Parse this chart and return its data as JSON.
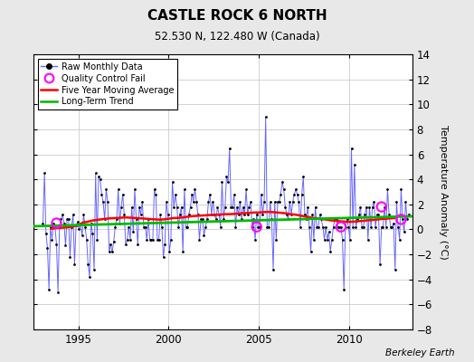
{
  "title": "CASTLE ROCK 6 NORTH",
  "subtitle": "52.530 N, 122.480 W (Canada)",
  "ylabel": "Temperature Anomaly (°C)",
  "attribution": "Berkeley Earth",
  "xlim": [
    1992.5,
    2013.5
  ],
  "ylim": [
    -8,
    14
  ],
  "yticks": [
    -8,
    -6,
    -4,
    -2,
    0,
    2,
    4,
    6,
    8,
    10,
    12,
    14
  ],
  "xticks": [
    1995,
    2000,
    2005,
    2010
  ],
  "bg_color": "#e8e8e8",
  "plot_bg_color": "#ffffff",
  "grid_color": "#cccccc",
  "raw_color": "#6666ff",
  "raw_dot_color": "#000000",
  "ma_color": "#ff0000",
  "trend_color": "#00bb00",
  "qc_color": "#ff00ff",
  "raw_data_times": [
    1993.042,
    1993.125,
    1993.208,
    1993.292,
    1993.375,
    1993.458,
    1993.542,
    1993.625,
    1993.708,
    1993.792,
    1993.875,
    1993.958,
    1994.042,
    1994.125,
    1994.208,
    1994.292,
    1994.375,
    1994.458,
    1994.542,
    1994.625,
    1994.708,
    1994.792,
    1994.875,
    1994.958,
    1995.042,
    1995.125,
    1995.208,
    1995.292,
    1995.375,
    1995.458,
    1995.542,
    1995.625,
    1995.708,
    1995.792,
    1995.875,
    1995.958,
    1996.042,
    1996.125,
    1996.208,
    1996.292,
    1996.375,
    1996.458,
    1996.542,
    1996.625,
    1996.708,
    1996.792,
    1996.875,
    1996.958,
    1997.042,
    1997.125,
    1997.208,
    1997.292,
    1997.375,
    1997.458,
    1997.542,
    1997.625,
    1997.708,
    1997.792,
    1997.875,
    1997.958,
    1998.042,
    1998.125,
    1998.208,
    1998.292,
    1998.375,
    1998.458,
    1998.542,
    1998.625,
    1998.708,
    1998.792,
    1998.875,
    1998.958,
    1999.042,
    1999.125,
    1999.208,
    1999.292,
    1999.375,
    1999.458,
    1999.542,
    1999.625,
    1999.708,
    1999.792,
    1999.875,
    1999.958,
    2000.042,
    2000.125,
    2000.208,
    2000.292,
    2000.375,
    2000.458,
    2000.542,
    2000.625,
    2000.708,
    2000.792,
    2000.875,
    2000.958,
    2001.042,
    2001.125,
    2001.208,
    2001.292,
    2001.375,
    2001.458,
    2001.542,
    2001.625,
    2001.708,
    2001.792,
    2001.875,
    2001.958,
    2002.042,
    2002.125,
    2002.208,
    2002.292,
    2002.375,
    2002.458,
    2002.542,
    2002.625,
    2002.708,
    2002.792,
    2002.875,
    2002.958,
    2003.042,
    2003.125,
    2003.208,
    2003.292,
    2003.375,
    2003.458,
    2003.542,
    2003.625,
    2003.708,
    2003.792,
    2003.875,
    2003.958,
    2004.042,
    2004.125,
    2004.208,
    2004.292,
    2004.375,
    2004.458,
    2004.542,
    2004.625,
    2004.708,
    2004.792,
    2004.875,
    2004.958,
    2005.042,
    2005.125,
    2005.208,
    2005.292,
    2005.375,
    2005.458,
    2005.542,
    2005.625,
    2005.708,
    2005.792,
    2005.875,
    2005.958,
    2006.042,
    2006.125,
    2006.208,
    2006.292,
    2006.375,
    2006.458,
    2006.542,
    2006.625,
    2006.708,
    2006.792,
    2006.875,
    2006.958,
    2007.042,
    2007.125,
    2007.208,
    2007.292,
    2007.375,
    2007.458,
    2007.542,
    2007.625,
    2007.708,
    2007.792,
    2007.875,
    2007.958,
    2008.042,
    2008.125,
    2008.208,
    2008.292,
    2008.375,
    2008.458,
    2008.542,
    2008.625,
    2008.708,
    2008.792,
    2008.875,
    2008.958,
    2009.042,
    2009.125,
    2009.208,
    2009.292,
    2009.375,
    2009.458,
    2009.542,
    2009.625,
    2009.708,
    2009.792,
    2009.875,
    2009.958,
    2010.042,
    2010.125,
    2010.208,
    2010.292,
    2010.375,
    2010.458,
    2010.542,
    2010.625,
    2010.708,
    2010.792,
    2010.875,
    2010.958,
    2011.042,
    2011.125,
    2011.208,
    2011.292,
    2011.375,
    2011.458,
    2011.542,
    2011.625,
    2011.708,
    2011.792,
    2011.875,
    2011.958,
    2012.042,
    2012.125,
    2012.208,
    2012.292,
    2012.375,
    2012.458,
    2012.542,
    2012.625,
    2012.708,
    2012.792,
    2012.875,
    2012.958,
    2013.042,
    2013.125,
    2013.208,
    2013.292
  ],
  "raw_data_values": [
    0.5,
    4.5,
    -0.3,
    -1.5,
    -4.8,
    0.2,
    -0.8,
    0.5,
    0.2,
    -1.2,
    -5.0,
    0.3,
    0.8,
    1.2,
    0.5,
    -1.3,
    0.8,
    0.8,
    -2.2,
    0.2,
    1.2,
    -2.8,
    0.3,
    0.6,
    0.0,
    0.5,
    -0.5,
    1.2,
    0.2,
    -0.8,
    -2.8,
    -3.8,
    0.5,
    -0.3,
    -3.2,
    4.5,
    -0.8,
    4.2,
    4.0,
    2.8,
    2.2,
    0.8,
    3.2,
    2.2,
    -1.8,
    -1.2,
    -1.8,
    -1.0,
    0.2,
    0.8,
    3.2,
    0.5,
    1.8,
    2.8,
    1.2,
    -1.2,
    -0.8,
    0.2,
    -0.8,
    1.8,
    -0.2,
    3.2,
    0.8,
    -1.2,
    1.8,
    1.2,
    2.2,
    0.2,
    0.2,
    -0.8,
    0.8,
    -0.8,
    -0.8,
    -0.8,
    3.2,
    2.8,
    -0.8,
    -0.8,
    1.2,
    0.2,
    -2.2,
    -1.2,
    2.2,
    1.2,
    -1.8,
    -0.8,
    3.8,
    1.8,
    2.8,
    1.8,
    0.2,
    1.2,
    1.8,
    -1.8,
    3.2,
    0.2,
    0.2,
    1.2,
    1.8,
    2.8,
    2.2,
    3.2,
    2.2,
    1.2,
    -0.8,
    0.8,
    0.8,
    -0.5,
    0.2,
    0.8,
    2.2,
    2.8,
    1.2,
    2.2,
    1.2,
    0.8,
    1.8,
    1.2,
    0.2,
    3.8,
    0.8,
    1.8,
    4.2,
    3.8,
    6.5,
    1.8,
    1.8,
    2.8,
    0.2,
    1.8,
    1.2,
    2.2,
    0.8,
    1.8,
    1.2,
    3.2,
    1.2,
    1.8,
    2.2,
    0.2,
    0.8,
    -0.8,
    1.2,
    0.2,
    0.2,
    2.8,
    1.2,
    2.2,
    9.0,
    0.2,
    0.2,
    2.2,
    0.8,
    -3.2,
    2.2,
    -0.8,
    2.2,
    2.2,
    2.8,
    3.8,
    3.2,
    1.8,
    1.2,
    0.8,
    2.2,
    1.2,
    2.2,
    2.8,
    3.2,
    2.8,
    2.2,
    0.2,
    2.8,
    4.2,
    1.2,
    0.8,
    1.8,
    0.2,
    -1.8,
    1.2,
    -0.8,
    1.8,
    0.2,
    0.2,
    1.2,
    0.8,
    0.2,
    -0.8,
    0.2,
    -0.8,
    -0.2,
    -1.8,
    -0.8,
    0.2,
    0.8,
    0.8,
    0.2,
    0.2,
    0.2,
    -0.8,
    -4.8,
    0.2,
    0.8,
    0.2,
    -0.8,
    6.5,
    0.2,
    5.2,
    0.2,
    0.8,
    1.2,
    1.8,
    0.2,
    0.2,
    1.2,
    1.8,
    -0.8,
    1.8,
    0.2,
    1.8,
    2.2,
    0.2,
    1.2,
    1.2,
    -2.8,
    0.2,
    0.2,
    1.8,
    0.2,
    3.2,
    1.2,
    0.2,
    0.2,
    0.5,
    -3.2,
    2.2,
    0.2,
    -0.8,
    3.2,
    0.8,
    -0.2,
    2.2,
    0.8,
    1.2
  ],
  "qc_fail_times": [
    1993.792,
    2004.875,
    2009.542,
    2011.792,
    2012.875
  ],
  "qc_fail_values": [
    0.5,
    0.2,
    0.2,
    1.8,
    0.8
  ],
  "trend_x": [
    1992.5,
    2013.5
  ],
  "trend_y": [
    0.25,
    1.05
  ],
  "ma_times": [
    1993.5,
    1993.75,
    1994.0,
    1994.25,
    1994.5,
    1994.75,
    1995.0,
    1995.25,
    1995.5,
    1995.75,
    1996.0,
    1996.25,
    1996.5,
    1996.75,
    1997.0,
    1997.25,
    1997.5,
    1997.75,
    1998.0,
    1998.25,
    1998.5,
    1998.75,
    1999.0,
    1999.25,
    1999.5,
    1999.75,
    2000.0,
    2000.25,
    2000.5,
    2000.75,
    2001.0,
    2001.25,
    2001.5,
    2001.75,
    2002.0,
    2002.25,
    2002.5,
    2002.75,
    2003.0,
    2003.25,
    2003.5,
    2003.75,
    2004.0,
    2004.25,
    2004.5,
    2004.75,
    2005.0,
    2005.25,
    2005.5,
    2005.75,
    2006.0,
    2006.25,
    2006.5,
    2006.75,
    2007.0,
    2007.25,
    2007.5,
    2007.75,
    2008.0,
    2008.25,
    2008.5,
    2008.75,
    2009.0,
    2009.25,
    2009.5,
    2009.75,
    2010.0,
    2010.25,
    2010.5,
    2010.75,
    2011.0,
    2011.25,
    2011.5,
    2011.75,
    2012.0,
    2012.25,
    2012.5
  ],
  "ma_values": [
    0.05,
    0.1,
    0.12,
    0.15,
    0.18,
    0.25,
    0.3,
    0.55,
    0.6,
    0.7,
    0.75,
    0.8,
    0.85,
    0.88,
    0.9,
    0.92,
    0.95,
    0.95,
    0.92,
    0.9,
    0.88,
    0.85,
    0.82,
    0.8,
    0.78,
    0.8,
    0.85,
    0.9,
    0.92,
    0.95,
    1.0,
    1.05,
    1.08,
    1.1,
    1.12,
    1.15,
    1.15,
    1.18,
    1.2,
    1.22,
    1.22,
    1.25,
    1.28,
    1.3,
    1.32,
    1.35,
    1.35,
    1.38,
    1.4,
    1.38,
    1.35,
    1.32,
    1.28,
    1.22,
    1.18,
    1.12,
    1.05,
    0.98,
    0.92,
    0.88,
    0.82,
    0.78,
    0.72,
    0.68,
    0.65,
    0.62,
    0.6,
    0.62,
    0.65,
    0.68,
    0.72,
    0.75,
    0.78,
    0.82,
    0.85,
    0.88,
    0.9
  ]
}
